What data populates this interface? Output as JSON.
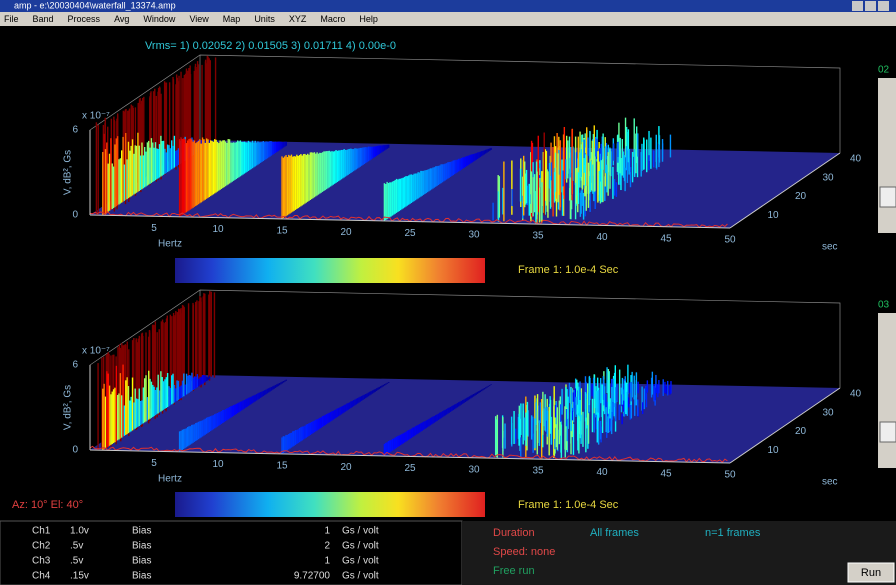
{
  "window": {
    "title": "amp - e:\\20030404\\waterfall_13374.amp",
    "menu": [
      "File",
      "Band",
      "Process",
      "Avg",
      "Window",
      "View",
      "Map",
      "Units",
      "XYZ",
      "Macro",
      "Help"
    ]
  },
  "vrms": "Vrms= 1) 0.02052  2) 0.01505  3) 0.01711  4) 0.00e-0",
  "plots": [
    {
      "scale": "x 10⁻⁷",
      "ymax": 6,
      "ymin": 0,
      "ylabel": "V, dB², Gs",
      "xticks": [
        5,
        10,
        15,
        20,
        25,
        30,
        35,
        40,
        45,
        50
      ],
      "xlabel": "Hertz",
      "zticks": [
        10,
        20,
        30,
        40
      ],
      "zlabel": "sec",
      "frame": "Frame 1: 1.0e-4 Sec",
      "side": "02"
    },
    {
      "scale": "x 10⁻⁷",
      "ymax": 6,
      "ymin": 0,
      "ylabel": "V, dB², Gs",
      "xticks": [
        5,
        10,
        15,
        20,
        25,
        30,
        35,
        40,
        45,
        50
      ],
      "xlabel": "Hertz",
      "zticks": [
        10,
        20,
        30,
        40
      ],
      "zlabel": "sec",
      "frame": "Frame 1: 1.0e-4 Sec",
      "side": "03"
    }
  ],
  "view": "Az: 10° El: 40°",
  "channels": [
    [
      "Ch1",
      "1.0v",
      "Bias",
      "1",
      "Gs / volt"
    ],
    [
      "Ch2",
      ".5v",
      "Bias",
      "2",
      "Gs / volt"
    ],
    [
      "Ch3",
      ".5v",
      "Bias",
      "1",
      "Gs / volt"
    ],
    [
      "Ch4",
      ".15v",
      "Bias",
      "9.72700",
      "Gs / volt"
    ]
  ],
  "status": {
    "duration": "Duration",
    "all": "All frames",
    "n": "n=1 frames",
    "speed": "Speed: none",
    "free": "Free run",
    "run": "Run"
  }
}
